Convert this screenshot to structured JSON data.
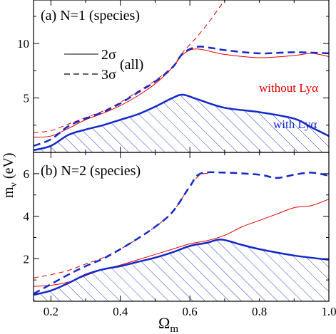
{
  "chart_data": [
    {
      "type": "line",
      "panel_label": "(a) N=1 (species)",
      "xlim": [
        0.15,
        1.0
      ],
      "ylim": [
        0,
        14
      ],
      "yticks": [
        5,
        10
      ],
      "yticklabels": [
        "5",
        "10"
      ],
      "xticks": [
        0.2,
        0.4,
        0.6,
        0.8,
        1.0
      ],
      "grid": false,
      "legend": {
        "position": "upper-left",
        "entries": [
          {
            "label": "2σ",
            "style": "solid"
          },
          {
            "label": "3σ",
            "style": "dashed"
          }
        ],
        "group_label": "(all)"
      },
      "annotations": [
        {
          "text": "without Lyα",
          "color": "#e00000"
        },
        {
          "text": "with Lyα",
          "color": "#1428c8"
        }
      ],
      "series": [
        {
          "label": "without Lyα",
          "role": "2sigma",
          "color": "#e00000",
          "style": "solid",
          "width": 1,
          "points": [
            [
              0.15,
              1.4
            ],
            [
              0.2,
              1.5
            ],
            [
              0.25,
              2.2
            ],
            [
              0.3,
              3.0
            ],
            [
              0.35,
              3.6
            ],
            [
              0.4,
              4.3
            ],
            [
              0.45,
              5.2
            ],
            [
              0.5,
              6.3
            ],
            [
              0.55,
              7.8
            ],
            [
              0.58,
              9.0
            ],
            [
              0.62,
              9.5
            ],
            [
              0.7,
              9.0
            ],
            [
              0.8,
              8.7
            ],
            [
              0.9,
              8.9
            ],
            [
              0.95,
              9.1
            ],
            [
              1.0,
              8.8
            ]
          ]
        },
        {
          "label": "without Lyα",
          "role": "3sigma",
          "color": "#e00000",
          "style": "dashed",
          "width": 1,
          "points": [
            [
              0.15,
              1.8
            ],
            [
              0.2,
              2.0
            ],
            [
              0.25,
              2.6
            ],
            [
              0.3,
              3.2
            ],
            [
              0.35,
              3.8
            ],
            [
              0.4,
              4.6
            ],
            [
              0.45,
              5.6
            ],
            [
              0.5,
              6.6
            ],
            [
              0.55,
              7.9
            ],
            [
              0.58,
              9.2
            ],
            [
              0.62,
              10.6
            ],
            [
              0.66,
              12.2
            ],
            [
              0.7,
              14.0
            ]
          ]
        },
        {
          "label": "with Lyα",
          "role": "2sigma",
          "color": "#1428c8",
          "style": "solid",
          "width": 2.5,
          "points": [
            [
              0.15,
              0.2
            ],
            [
              0.2,
              0.6
            ],
            [
              0.25,
              1.6
            ],
            [
              0.3,
              2.1
            ],
            [
              0.35,
              2.5
            ],
            [
              0.4,
              3.0
            ],
            [
              0.45,
              3.5
            ],
            [
              0.5,
              4.2
            ],
            [
              0.55,
              5.0
            ],
            [
              0.58,
              5.3
            ],
            [
              0.62,
              4.9
            ],
            [
              0.7,
              4.1
            ],
            [
              0.8,
              3.7
            ],
            [
              0.9,
              3.1
            ],
            [
              0.95,
              2.3
            ],
            [
              1.0,
              1.5
            ]
          ]
        },
        {
          "label": "with Lyα",
          "role": "3sigma",
          "color": "#1428c8",
          "style": "dashed",
          "width": 2.5,
          "points": [
            [
              0.15,
              0.6
            ],
            [
              0.2,
              1.2
            ],
            [
              0.25,
              2.4
            ],
            [
              0.3,
              3.1
            ],
            [
              0.35,
              3.7
            ],
            [
              0.4,
              4.5
            ],
            [
              0.45,
              5.5
            ],
            [
              0.5,
              6.5
            ],
            [
              0.55,
              7.8
            ],
            [
              0.58,
              9.1
            ],
            [
              0.62,
              9.7
            ],
            [
              0.66,
              9.6
            ],
            [
              0.7,
              9.4
            ],
            [
              0.8,
              9.1
            ],
            [
              0.9,
              9.2
            ],
            [
              1.0,
              9.1
            ]
          ]
        }
      ],
      "shaded_region": {
        "under_series": "with Lyα 2σ",
        "pattern": "diagonal hatch",
        "color": "#1428c8"
      }
    },
    {
      "type": "line",
      "panel_label": "(b) N=2 (species)",
      "xlim": [
        0.15,
        1.0
      ],
      "ylim": [
        0,
        7
      ],
      "yticks": [
        2,
        4,
        6
      ],
      "yticklabels": [
        "2",
        "4",
        "6"
      ],
      "xticks": [
        0.2,
        0.4,
        0.6,
        0.8,
        1.0
      ],
      "xticklabels": [
        "0.2",
        "0.4",
        "0.6",
        "0.8",
        "1.0"
      ],
      "grid": false,
      "series": [
        {
          "label": "without Lyα",
          "role": "2sigma",
          "color": "#e00000",
          "style": "solid",
          "width": 1,
          "points": [
            [
              0.15,
              0.7
            ],
            [
              0.2,
              0.75
            ],
            [
              0.25,
              0.9
            ],
            [
              0.3,
              1.2
            ],
            [
              0.35,
              1.5
            ],
            [
              0.4,
              1.7
            ],
            [
              0.45,
              1.95
            ],
            [
              0.5,
              2.2
            ],
            [
              0.55,
              2.45
            ],
            [
              0.6,
              2.7
            ],
            [
              0.65,
              2.85
            ],
            [
              0.7,
              3.1
            ],
            [
              0.75,
              3.5
            ],
            [
              0.8,
              3.8
            ],
            [
              0.85,
              4.1
            ],
            [
              0.9,
              4.4
            ],
            [
              0.95,
              4.5
            ],
            [
              1.0,
              4.8
            ]
          ]
        },
        {
          "label": "without Lyα",
          "role": "3sigma",
          "color": "#e00000",
          "style": "dashed",
          "width": 1,
          "points": [
            [
              0.15,
              1.1
            ],
            [
              0.2,
              1.25
            ],
            [
              0.25,
              1.45
            ],
            [
              0.3,
              1.75
            ],
            [
              0.35,
              2.05
            ],
            [
              0.4,
              2.45
            ],
            [
              0.45,
              2.95
            ],
            [
              0.5,
              3.5
            ],
            [
              0.55,
              4.2
            ],
            [
              0.6,
              5.4
            ],
            [
              0.63,
              5.95
            ],
            [
              0.66,
              6.0
            ]
          ]
        },
        {
          "label": "with Lyα",
          "role": "2sigma",
          "color": "#1428c8",
          "style": "solid",
          "width": 2.5,
          "points": [
            [
              0.15,
              0.3
            ],
            [
              0.2,
              0.5
            ],
            [
              0.25,
              0.85
            ],
            [
              0.3,
              1.25
            ],
            [
              0.35,
              1.5
            ],
            [
              0.4,
              1.65
            ],
            [
              0.45,
              1.85
            ],
            [
              0.5,
              2.05
            ],
            [
              0.55,
              2.3
            ],
            [
              0.6,
              2.6
            ],
            [
              0.65,
              2.75
            ],
            [
              0.69,
              2.9
            ],
            [
              0.75,
              2.65
            ],
            [
              0.8,
              2.45
            ],
            [
              0.9,
              2.15
            ],
            [
              1.0,
              1.95
            ]
          ]
        },
        {
          "label": "with Lyα",
          "role": "3sigma",
          "color": "#1428c8",
          "style": "dashed",
          "width": 2.5,
          "points": [
            [
              0.15,
              0.35
            ],
            [
              0.2,
              0.8
            ],
            [
              0.25,
              1.25
            ],
            [
              0.3,
              1.65
            ],
            [
              0.35,
              2.0
            ],
            [
              0.4,
              2.45
            ],
            [
              0.45,
              2.95
            ],
            [
              0.5,
              3.5
            ],
            [
              0.55,
              4.2
            ],
            [
              0.6,
              5.4
            ],
            [
              0.63,
              6.0
            ],
            [
              0.7,
              6.05
            ],
            [
              0.8,
              5.95
            ],
            [
              0.85,
              5.8
            ],
            [
              0.9,
              5.95
            ],
            [
              0.95,
              6.05
            ],
            [
              1.0,
              5.9
            ]
          ]
        }
      ],
      "shaded_region": {
        "under_series": "with Lyα 2σ",
        "pattern": "diagonal hatch",
        "color": "#1428c8"
      }
    }
  ],
  "shared_axes": {
    "xlabel_main": "Ω",
    "xlabel_sub": "m",
    "ylabel_main": "m",
    "ylabel_sub": "ν",
    "ylabel_unit": " (eV)"
  }
}
